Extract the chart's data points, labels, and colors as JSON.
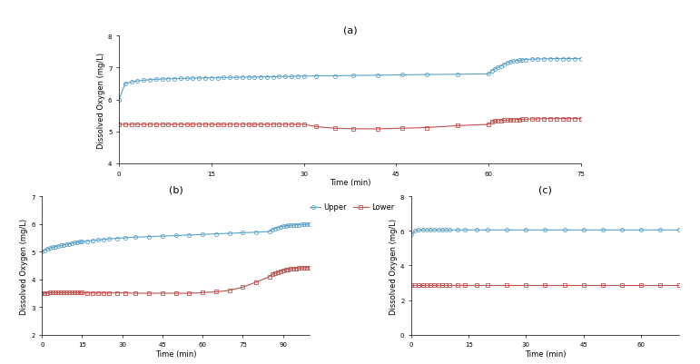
{
  "title_a": "(a)",
  "title_b": "(b)",
  "title_c": "(c)",
  "xlabel": "Time (min)",
  "ylabel": "Dissolved Oxygen (mg/L)",
  "upper_color": "#5BA3C9",
  "lower_color": "#C0504D",
  "upper_label": "Upper",
  "lower_label": "Lower",
  "a_upper_x": [
    0,
    1,
    2,
    3,
    4,
    5,
    6,
    7,
    8,
    9,
    10,
    11,
    12,
    13,
    14,
    15,
    16,
    17,
    18,
    19,
    20,
    21,
    22,
    23,
    24,
    25,
    26,
    27,
    28,
    29,
    30,
    32,
    35,
    38,
    42,
    46,
    50,
    55,
    60,
    60.5,
    61,
    61.5,
    62,
    62.5,
    63,
    63.5,
    64,
    64.5,
    65,
    65.5,
    66,
    67,
    68,
    69,
    70,
    71,
    72,
    73,
    74,
    75
  ],
  "a_upper_y": [
    6.0,
    6.5,
    6.55,
    6.58,
    6.6,
    6.62,
    6.63,
    6.64,
    6.65,
    6.65,
    6.66,
    6.66,
    6.67,
    6.67,
    6.68,
    6.68,
    6.68,
    6.69,
    6.69,
    6.69,
    6.7,
    6.7,
    6.7,
    6.71,
    6.71,
    6.71,
    6.72,
    6.72,
    6.72,
    6.73,
    6.73,
    6.74,
    6.74,
    6.75,
    6.76,
    6.77,
    6.78,
    6.79,
    6.8,
    6.9,
    6.95,
    7.0,
    7.05,
    7.1,
    7.15,
    7.18,
    7.2,
    7.22,
    7.23,
    7.24,
    7.25,
    7.26,
    7.27,
    7.27,
    7.28,
    7.28,
    7.28,
    7.28,
    7.28,
    7.28
  ],
  "a_lower_x": [
    0,
    1,
    2,
    3,
    4,
    5,
    6,
    7,
    8,
    9,
    10,
    11,
    12,
    13,
    14,
    15,
    16,
    17,
    18,
    19,
    20,
    21,
    22,
    23,
    24,
    25,
    26,
    27,
    28,
    29,
    30,
    32,
    35,
    38,
    42,
    46,
    50,
    55,
    60,
    60.5,
    61,
    61.5,
    62,
    62.5,
    63,
    63.5,
    64,
    64.5,
    65,
    65.5,
    66,
    67,
    68,
    69,
    70,
    71,
    72,
    73,
    74,
    75
  ],
  "a_lower_y": [
    5.22,
    5.22,
    5.22,
    5.22,
    5.22,
    5.22,
    5.22,
    5.22,
    5.22,
    5.22,
    5.22,
    5.22,
    5.22,
    5.22,
    5.22,
    5.22,
    5.22,
    5.22,
    5.22,
    5.22,
    5.22,
    5.22,
    5.22,
    5.22,
    5.22,
    5.22,
    5.22,
    5.22,
    5.22,
    5.22,
    5.22,
    5.15,
    5.1,
    5.08,
    5.08,
    5.1,
    5.12,
    5.18,
    5.22,
    5.3,
    5.32,
    5.33,
    5.34,
    5.35,
    5.35,
    5.36,
    5.36,
    5.37,
    5.37,
    5.38,
    5.38,
    5.39,
    5.39,
    5.4,
    5.4,
    5.4,
    5.4,
    5.4,
    5.4,
    5.4
  ],
  "a_xlim": [
    0,
    75
  ],
  "a_ylim": [
    4,
    8
  ],
  "a_xticks": [
    0,
    15,
    30,
    45,
    60,
    75
  ],
  "a_yticks": [
    4,
    5,
    6,
    7,
    8
  ],
  "b_upper_x": [
    0,
    1,
    2,
    3,
    4,
    5,
    6,
    7,
    8,
    9,
    10,
    11,
    12,
    13,
    14,
    15,
    17,
    19,
    21,
    23,
    25,
    28,
    31,
    35,
    40,
    45,
    50,
    55,
    60,
    65,
    70,
    75,
    80,
    85,
    86,
    87,
    88,
    89,
    90,
    91,
    92,
    93,
    94,
    95,
    96,
    97,
    98,
    99,
    100
  ],
  "b_upper_y": [
    5.0,
    5.05,
    5.1,
    5.13,
    5.16,
    5.18,
    5.2,
    5.22,
    5.24,
    5.26,
    5.28,
    5.3,
    5.32,
    5.33,
    5.35,
    5.36,
    5.38,
    5.4,
    5.42,
    5.44,
    5.46,
    5.48,
    5.5,
    5.52,
    5.54,
    5.56,
    5.58,
    5.6,
    5.62,
    5.64,
    5.66,
    5.68,
    5.7,
    5.72,
    5.8,
    5.84,
    5.87,
    5.9,
    5.92,
    5.93,
    5.94,
    5.95,
    5.96,
    5.97,
    5.97,
    5.98,
    5.98,
    5.99,
    5.99
  ],
  "b_lower_x": [
    0,
    1,
    2,
    3,
    4,
    5,
    6,
    7,
    8,
    9,
    10,
    11,
    12,
    13,
    14,
    15,
    17,
    19,
    21,
    23,
    25,
    28,
    31,
    35,
    40,
    45,
    50,
    55,
    60,
    65,
    70,
    75,
    80,
    85,
    86,
    87,
    88,
    89,
    90,
    91,
    92,
    93,
    94,
    95,
    96,
    97,
    98,
    99,
    100
  ],
  "b_lower_y": [
    3.5,
    3.51,
    3.51,
    3.52,
    3.52,
    3.52,
    3.52,
    3.52,
    3.52,
    3.52,
    3.52,
    3.52,
    3.52,
    3.52,
    3.52,
    3.52,
    3.51,
    3.51,
    3.51,
    3.51,
    3.51,
    3.51,
    3.51,
    3.5,
    3.5,
    3.5,
    3.5,
    3.5,
    3.52,
    3.55,
    3.6,
    3.72,
    3.9,
    4.1,
    4.18,
    4.22,
    4.26,
    4.3,
    4.33,
    4.35,
    4.36,
    4.38,
    4.39,
    4.4,
    4.41,
    4.42,
    4.42,
    4.43,
    4.43
  ],
  "b_xlim": [
    0,
    100
  ],
  "b_ylim": [
    2,
    7
  ],
  "b_xticks": [
    0,
    15,
    30,
    45,
    60,
    75,
    90
  ],
  "b_yticks": [
    2,
    3,
    4,
    5,
    6,
    7
  ],
  "c_upper_x": [
    0,
    1,
    2,
    3,
    4,
    5,
    6,
    7,
    8,
    9,
    10,
    12,
    14,
    17,
    20,
    25,
    30,
    35,
    40,
    45,
    50,
    55,
    60,
    65,
    70
  ],
  "c_upper_y": [
    5.8,
    6.0,
    6.05,
    6.05,
    6.05,
    6.05,
    6.05,
    6.05,
    6.05,
    6.05,
    6.05,
    6.05,
    6.05,
    6.05,
    6.05,
    6.05,
    6.05,
    6.05,
    6.05,
    6.05,
    6.05,
    6.05,
    6.05,
    6.05,
    6.05
  ],
  "c_lower_x": [
    0,
    1,
    2,
    3,
    4,
    5,
    6,
    7,
    8,
    9,
    10,
    12,
    14,
    17,
    20,
    25,
    30,
    35,
    40,
    45,
    50,
    55,
    60,
    65,
    70
  ],
  "c_lower_y": [
    2.88,
    2.88,
    2.88,
    2.88,
    2.88,
    2.88,
    2.88,
    2.88,
    2.88,
    2.88,
    2.88,
    2.88,
    2.88,
    2.88,
    2.88,
    2.88,
    2.88,
    2.88,
    2.88,
    2.88,
    2.88,
    2.88,
    2.88,
    2.88,
    2.88
  ],
  "c_xlim": [
    0,
    70
  ],
  "c_ylim": [
    0,
    8
  ],
  "c_xticks": [
    0,
    15,
    30,
    45,
    60
  ],
  "c_yticks": [
    0,
    2,
    4,
    6,
    8
  ],
  "bg_color": "#ffffff",
  "marker_size": 3,
  "line_width": 0.8,
  "font_size": 6,
  "title_font_size": 8,
  "legend_font_size": 6,
  "tick_font_size": 5
}
